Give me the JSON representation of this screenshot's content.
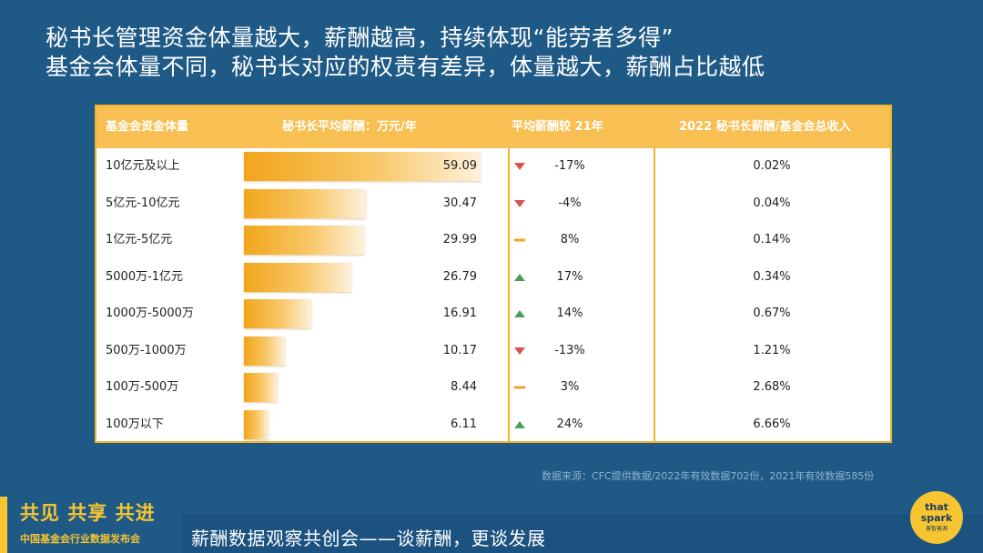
{
  "headline": {
    "line1": "秘书长管理资金体量越大，薪酬越高，持续体现“能劳者多得”",
    "line2": "基金会体量不同，秘书长对应的权责有差异，体量越大，薪酬占比越低"
  },
  "table": {
    "headers": {
      "size": "基金会资金体量",
      "salary": "秘书长平均薪酬：万元/年",
      "change": "平均薪酬较 21年",
      "ratio": "2022 秘书长薪酬/基金会总收入"
    },
    "rows": [
      {
        "size": "10亿元及以上",
        "salary": "59.09",
        "trend": "down",
        "change": "-17%",
        "ratio": "0.02%"
      },
      {
        "size": "5亿元-10亿元",
        "salary": "30.47",
        "trend": "down",
        "change": "-4%",
        "ratio": "0.04%"
      },
      {
        "size": "1亿元-5亿元",
        "salary": "29.99",
        "trend": "flat",
        "change": "8%",
        "ratio": "0.14%"
      },
      {
        "size": "5000万-1亿元",
        "salary": "26.79",
        "trend": "up",
        "change": "17%",
        "ratio": "0.34%"
      },
      {
        "size": "1000万-5000万",
        "salary": "16.91",
        "trend": "up",
        "change": "14%",
        "ratio": "0.67%"
      },
      {
        "size": "500万-1000万",
        "salary": "10.17",
        "trend": "down",
        "change": "-13%",
        "ratio": "1.21%"
      },
      {
        "size": "100万-500万",
        "salary": "8.44",
        "trend": "flat",
        "change": "3%",
        "ratio": "2.68%"
      },
      {
        "size": "100万以下",
        "salary": "6.11",
        "trend": "up",
        "change": "24%",
        "ratio": "6.66%"
      }
    ]
  },
  "colors": {
    "up": "#4aa05a",
    "down": "#d9534f",
    "flat": "#f0a526"
  },
  "source": "数据来源：CFC提供数据/2022年有效数据702份，2021年有效数据585份",
  "footer": {
    "slogan": "共见 共享 共进",
    "org": "中国基金会行业数据发布会",
    "tagline": "薪酬数据观察共创会——谈薪酬，更谈发展",
    "logo_line1": "that",
    "logo_line2": "spark",
    "logo_line3": "善智善源"
  }
}
